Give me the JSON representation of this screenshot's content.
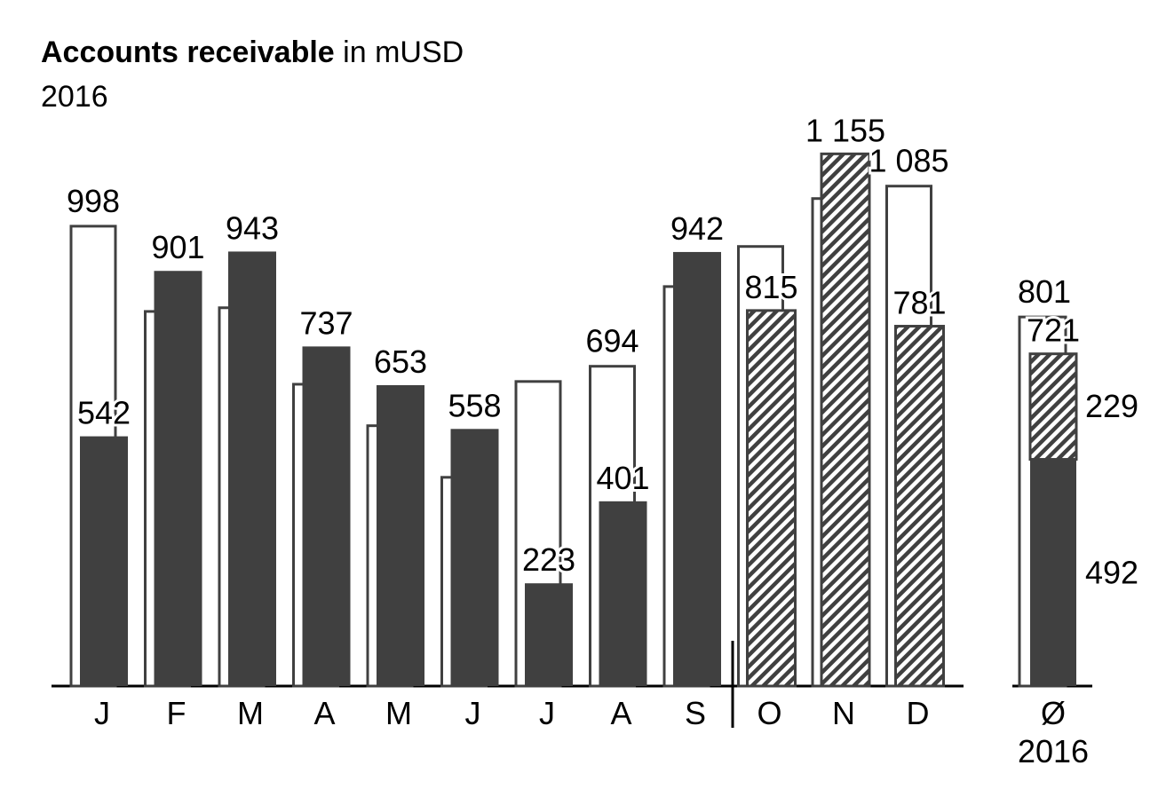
{
  "chart_data": {
    "type": "bar",
    "title": "Accounts receivable",
    "unit": "in mUSD",
    "subtitle": "2016",
    "categories": [
      "J",
      "F",
      "M",
      "A",
      "M",
      "J",
      "J",
      "A",
      "S",
      "O",
      "N",
      "D"
    ],
    "ylim": [
      0,
      1200
    ],
    "series": [
      {
        "color": "#404040",
        "style": "outline",
        "values": [
          998,
          813,
          821,
          655,
          565,
          453,
          661,
          694,
          867,
          954,
          1058,
          1085
        ],
        "value_labels": [
          "998",
          null,
          null,
          null,
          null,
          null,
          null,
          "694",
          null,
          null,
          null,
          "1 085"
        ]
      },
      {
        "color": "#404040",
        "style": "solid",
        "values": [
          542,
          901,
          943,
          737,
          653,
          558,
          223,
          401,
          942,
          815,
          1155,
          781
        ],
        "value_labels": [
          "542",
          "901",
          "943",
          "737",
          "653",
          "558",
          "223",
          "401",
          "942",
          "815",
          "1 155",
          "781"
        ],
        "patterns": [
          "solid",
          "solid",
          "solid",
          "solid",
          "solid",
          "solid",
          "solid",
          "solid",
          "solid",
          "hatched",
          "hatched",
          "hatched"
        ]
      }
    ],
    "average": {
      "label": [
        "Ø",
        "2016"
      ],
      "outline": 801,
      "total": 721,
      "segments": [
        {
          "value": 492,
          "pattern": "solid"
        },
        {
          "value": 229,
          "pattern": "hatched"
        }
      ]
    }
  }
}
